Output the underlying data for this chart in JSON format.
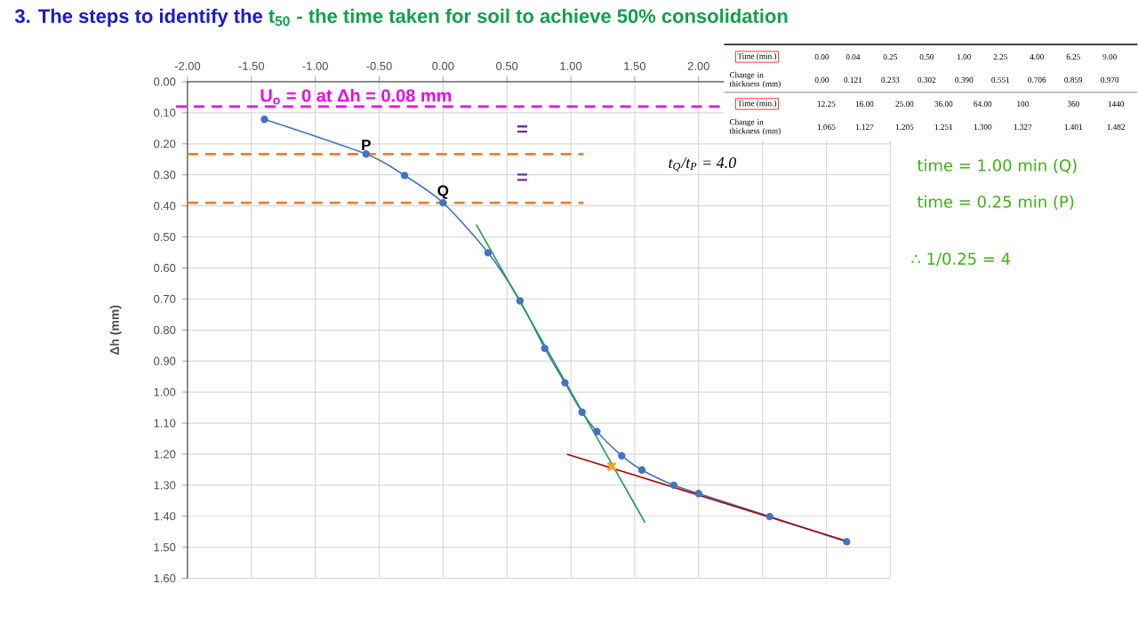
{
  "chart_data": {
    "type": "line",
    "title": "3. The steps to identify the",
    "subtitle": "t$_{50}$ - the time taken for soil to achieve 50% consolidation",
    "ylabel": "Δh (mm)",
    "xlim": [
      -2,
      3.5
    ],
    "ylim": [
      1.6,
      0
    ],
    "xticks": [
      {
        "value": -2,
        "label": "-2.00"
      },
      {
        "value": -1.5,
        "label": "-1.50"
      },
      {
        "value": -1,
        "label": "-1.00"
      },
      {
        "value": -0.5,
        "label": "-0.50"
      },
      {
        "value": 0,
        "label": "0.00"
      },
      {
        "value": 0.5,
        "label": "0.50"
      },
      {
        "value": 1,
        "label": "1.00"
      },
      {
        "value": 1.5,
        "label": "1.50"
      },
      {
        "value": 2,
        "label": "2.00"
      },
      {
        "value": 2.5,
        "label": null
      },
      {
        "value": 3,
        "label": null
      },
      {
        "value": 3.5,
        "label": null
      }
    ],
    "yticks": [
      {
        "value": 0,
        "label": "0.00"
      },
      {
        "value": 0.1,
        "label": "0.10"
      },
      {
        "value": 0.2,
        "label": "0.20"
      },
      {
        "value": 0.3,
        "label": "0.30"
      },
      {
        "value": 0.4,
        "label": "0.40"
      },
      {
        "value": 0.5,
        "label": "0.50"
      },
      {
        "value": 0.6,
        "label": "0.60"
      },
      {
        "value": 0.7,
        "label": "0.70"
      },
      {
        "value": 0.8,
        "label": "0.80"
      },
      {
        "value": 0.9,
        "label": "0.90"
      },
      {
        "value": 1.0,
        "label": "1.00"
      },
      {
        "value": 1.1,
        "label": "1.10"
      },
      {
        "value": 1.2,
        "label": "1.20"
      },
      {
        "value": 1.3,
        "label": "1.30"
      },
      {
        "value": 1.4,
        "label": "1.40"
      },
      {
        "value": 1.5,
        "label": "1.50"
      },
      {
        "value": 1.6,
        "label": "1.60"
      }
    ],
    "grid": true,
    "series": [
      {
        "color": "#4472c4",
        "marker": "circle",
        "x": [
          -1.398,
          -0.602,
          -0.301,
          0,
          0.352,
          0.602,
          0.796,
          0.954,
          1.088,
          1.204,
          1.398,
          1.556,
          1.806,
          2,
          2.556,
          3.158
        ],
        "values": [
          0.121,
          0.233,
          0.302,
          0.39,
          0.551,
          0.706,
          0.859,
          0.97,
          1.065,
          1.127,
          1.205,
          1.251,
          1.3,
          1.327,
          1.401,
          1.482
        ]
      },
      {
        "color": "#1e9e4e",
        "x": [
          0.26,
          1.58
        ],
        "values": [
          0.46,
          1.42
        ]
      },
      {
        "color": "#b00000",
        "x": [
          0.97,
          3.16
        ],
        "values": [
          1.2,
          1.48
        ]
      },
      {
        "type": "line",
        "color": "#ed7d31",
        "line_style": "dashed",
        "x": [
          -2,
          1.1
        ],
        "values": [
          0.233,
          0.233
        ]
      },
      {
        "type": "line",
        "color": "#ed7d31",
        "line_style": "dashed",
        "x": [
          -2,
          1.1
        ],
        "values": [
          0.39,
          0.39
        ]
      },
      {
        "type": "scatter",
        "color": "#f5a623",
        "marker": "cross",
        "x": [
          1.32
        ],
        "values": [
          1.24
        ]
      }
    ],
    "ref_lines": [
      {
        "axis": "y",
        "value": 0.08,
        "label": "U$_{o}$ = 0 at Δh = 0.08 mm",
        "color": "#ee00ee",
        "line_style": "dashed"
      }
    ],
    "annotations": [
      {
        "text": "P",
        "x": -0.602,
        "y": 0.233
      },
      {
        "text": "Q",
        "x": 0,
        "y": 0.39
      },
      "=",
      "=",
      "t$_{Q}$/t$_{P}$ = 4.0",
      "time = 1.00 min (Q)",
      "time = 0.25 min (P)",
      "∴ 1/0.25 = 4",
      "Time (min.)",
      "Change in thickness (mm)",
      "0.00",
      "0.04",
      "0.25",
      "0.50",
      "1.00",
      "2.25",
      "4.00",
      "6.25",
      "9.00",
      "0.00",
      "0.121",
      "0.233",
      "0.302",
      "0.390",
      "0.551",
      "0.706",
      "0.859",
      "0.970",
      "Time (min.)",
      "Change in thickness (mm)",
      "12.25",
      "16.00",
      "25.00",
      "36.00",
      "64.00",
      "100",
      "360",
      "1440",
      "1.065",
      "1.127",
      "1.205",
      "1.251",
      "1.300",
      "1.327",
      "1.401",
      "1.482"
    ]
  }
}
